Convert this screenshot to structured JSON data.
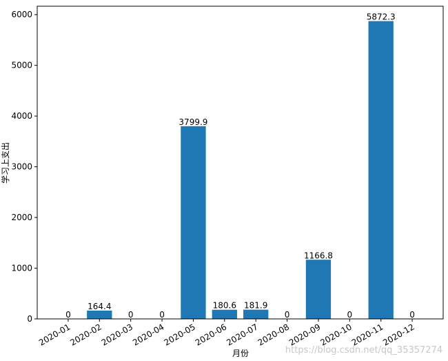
{
  "chart_data": {
    "type": "bar",
    "categories": [
      "2020-01",
      "2020-02",
      "2020-03",
      "2020-04",
      "2020-05",
      "2020-06",
      "2020-07",
      "2020-08",
      "2020-09",
      "2020-10",
      "2020-11",
      "2020-12"
    ],
    "values": [
      0,
      164.4,
      0,
      0,
      3799.9,
      180.6,
      181.9,
      0,
      1166.8,
      0,
      5872.3,
      0
    ],
    "color": "#1f77b4",
    "x_label": "月份",
    "y_label": "学习上支出",
    "ylim": [
      0,
      6165.9
    ],
    "yticks": [
      0,
      1000,
      2000,
      3000,
      4000,
      5000,
      6000
    ],
    "watermark": "https://blog.csdn.net/qq_35357274"
  }
}
